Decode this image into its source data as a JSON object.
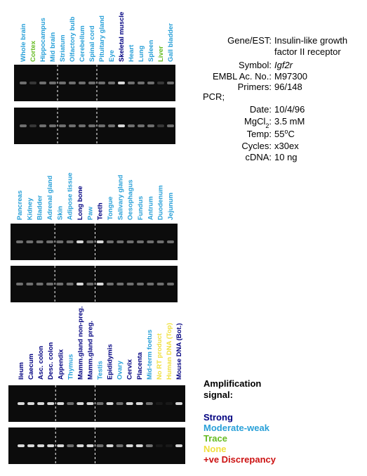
{
  "panels": [
    {
      "lanes": [
        {
          "label": "Whole brain",
          "color": "#29a0d8"
        },
        {
          "label": "Cortex",
          "color": "#66bb22"
        },
        {
          "label": "Hippocampus",
          "color": "#29a0d8"
        },
        {
          "label": "Mid brain",
          "color": "#29a0d8"
        },
        {
          "label": "Striatum",
          "color": "#29a0d8"
        },
        {
          "label": "Olfactory bulb",
          "color": "#29a0d8"
        },
        {
          "label": "Cerebellum",
          "color": "#29a0d8"
        },
        {
          "label": "Spinal cord",
          "color": "#29a0d8"
        },
        {
          "label": "Pituitary gland",
          "color": "#29a0d8"
        },
        {
          "label": "Eye",
          "color": "#29a0d8"
        },
        {
          "label": "Skeletal muscle",
          "color": "#000080"
        },
        {
          "label": "Heart",
          "color": "#29a0d8"
        },
        {
          "label": "Lung",
          "color": "#29a0d8"
        },
        {
          "label": "Spleen",
          "color": "#29a0d8"
        },
        {
          "label": "Liver",
          "color": "#66bb22"
        },
        {
          "label": "Gall bladder",
          "color": "#29a0d8"
        }
      ]
    },
    {
      "lanes": [
        {
          "label": "Pancreas",
          "color": "#29a0d8"
        },
        {
          "label": "Kidney",
          "color": "#29a0d8"
        },
        {
          "label": "Bladder",
          "color": "#29a0d8"
        },
        {
          "label": "Adrenal gland",
          "color": "#29a0d8"
        },
        {
          "label": "Skin",
          "color": "#29a0d8"
        },
        {
          "label": "Adipose tissue",
          "color": "#29a0d8"
        },
        {
          "label": "Long bone",
          "color": "#000080"
        },
        {
          "label": "Paw",
          "color": "#29a0d8"
        },
        {
          "label": "Teeth",
          "color": "#000080"
        },
        {
          "label": "Tongue",
          "color": "#29a0d8"
        },
        {
          "label": "Salivary gland",
          "color": "#29a0d8"
        },
        {
          "label": "Oesophagus",
          "color": "#29a0d8"
        },
        {
          "label": "Fundus",
          "color": "#29a0d8"
        },
        {
          "label": "Antrum",
          "color": "#29a0d8"
        },
        {
          "label": "Duodenum",
          "color": "#29a0d8"
        },
        {
          "label": "Jejunum",
          "color": "#29a0d8"
        }
      ]
    },
    {
      "lanes": [
        {
          "label": "Ileum",
          "color": "#000080"
        },
        {
          "label": "Caecum",
          "color": "#000080"
        },
        {
          "label": "Asc. colon",
          "color": "#000080"
        },
        {
          "label": "Desc. colon",
          "color": "#000080"
        },
        {
          "label": "Appendix",
          "color": "#000080"
        },
        {
          "label": "Thymus",
          "color": "#29a0d8"
        },
        {
          "label": "Mamm.gland non-preg.",
          "color": "#000080"
        },
        {
          "label": "Mamm.gland preg.",
          "color": "#000080"
        },
        {
          "label": "Testis",
          "color": "#29a0d8"
        },
        {
          "label": "Epididymis",
          "color": "#000080"
        },
        {
          "label": "Ovary",
          "color": "#29a0d8"
        },
        {
          "label": "Cervix",
          "color": "#000080"
        },
        {
          "label": "Placenta",
          "color": "#000080"
        },
        {
          "label": "Mid-term foetus",
          "color": "#29a0d8"
        },
        {
          "label": "No RT product",
          "color": "#f0e040"
        },
        {
          "label": "Human DNA (Top)",
          "color": "#f0e040"
        },
        {
          "label": "Mouse DNA (Bot.)",
          "color": "#000080"
        }
      ]
    }
  ],
  "info": {
    "rows": [
      {
        "label": "Gene/EST:",
        "value": [
          "Insulin-like growth",
          "factor II receptor"
        ]
      },
      {
        "label": "Symbol:",
        "value": "Igf2r",
        "italic": true
      },
      {
        "label": "EMBL Ac. No.:",
        "value": "M97300"
      },
      {
        "label": "Primers:",
        "value": "96/148"
      },
      {
        "heading": "PCR;"
      },
      {
        "label": "Date:",
        "value": "10/4/96"
      },
      {
        "label": [
          "MgCl",
          "2",
          ":"
        ],
        "shift": "sub",
        "value": "3.5 mM"
      },
      {
        "label": "Temp:",
        "value": [
          "55",
          "o",
          "C"
        ],
        "shift": "super"
      },
      {
        "label": "Cycles:",
        "value": "x30ex"
      },
      {
        "label": "cDNA:",
        "value": "10 ng"
      }
    ]
  },
  "legend": {
    "title": [
      "Amplification",
      "signal:"
    ],
    "items": [
      {
        "name": "Strong",
        "color": "#000080"
      },
      {
        "name": "Moderate-weak",
        "color": "#29a0d8"
      },
      {
        "name": "Trace",
        "color": "#66bb22"
      },
      {
        "name": "None",
        "color": "#f0e040"
      },
      {
        "name": "+ve Discrepancy",
        "color": "#cc1111"
      }
    ]
  }
}
